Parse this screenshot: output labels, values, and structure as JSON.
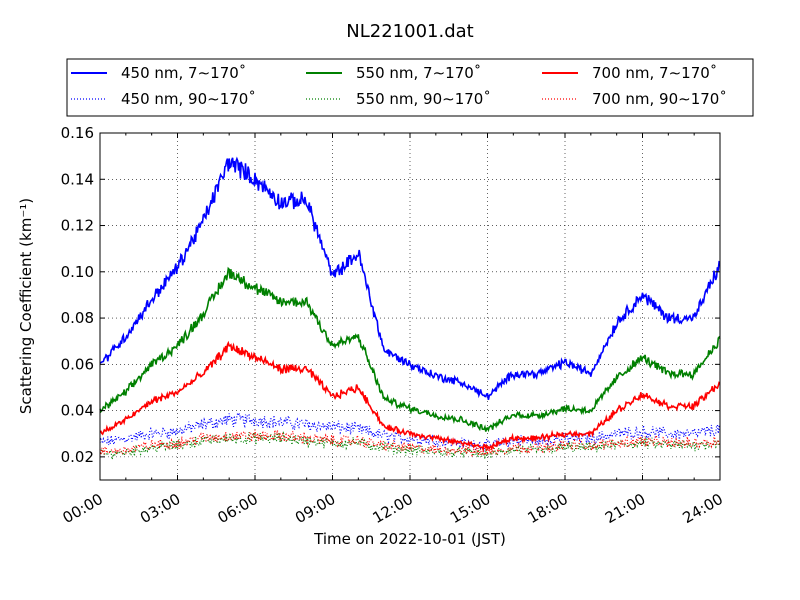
{
  "chart_data": {
    "type": "line",
    "title": "NL221001.dat",
    "xlabel": "Time on 2022-10-01 (JST)",
    "ylabel": "Scattering Coefficient (km⁻¹)",
    "xlim": [
      "00:00",
      "24:00"
    ],
    "ylim": [
      0.01,
      0.16
    ],
    "x_ticks": [
      "00:00",
      "03:00",
      "06:00",
      "09:00",
      "12:00",
      "15:00",
      "18:00",
      "21:00",
      "24:00"
    ],
    "y_ticks": [
      "0.02",
      "0.04",
      "0.06",
      "0.08",
      "0.10",
      "0.12",
      "0.14",
      "0.16"
    ],
    "grid": true,
    "legend_position": "top",
    "x": [
      "00:00",
      "01:00",
      "02:00",
      "03:00",
      "04:00",
      "05:00",
      "06:00",
      "07:00",
      "08:00",
      "09:00",
      "10:00",
      "11:00",
      "12:00",
      "13:00",
      "14:00",
      "15:00",
      "16:00",
      "17:00",
      "18:00",
      "19:00",
      "20:00",
      "21:00",
      "22:00",
      "23:00",
      "24:00"
    ],
    "series": [
      {
        "name": "450 nm, 7∼170˚",
        "color": "#0000ff",
        "style": "solid",
        "values": [
          0.06,
          0.072,
          0.088,
          0.102,
          0.122,
          0.148,
          0.14,
          0.13,
          0.131,
          0.098,
          0.108,
          0.066,
          0.06,
          0.055,
          0.052,
          0.046,
          0.056,
          0.056,
          0.061,
          0.056,
          0.078,
          0.09,
          0.08,
          0.08,
          0.103
        ]
      },
      {
        "name": "550 nm, 7∼170˚",
        "color": "#008000",
        "style": "solid",
        "values": [
          0.04,
          0.048,
          0.06,
          0.068,
          0.082,
          0.1,
          0.093,
          0.087,
          0.087,
          0.068,
          0.072,
          0.045,
          0.041,
          0.038,
          0.036,
          0.032,
          0.038,
          0.038,
          0.041,
          0.04,
          0.054,
          0.063,
          0.056,
          0.056,
          0.071
        ]
      },
      {
        "name": "700 nm, 7∼170˚",
        "color": "#ff0000",
        "style": "solid",
        "values": [
          0.03,
          0.036,
          0.044,
          0.048,
          0.056,
          0.068,
          0.063,
          0.058,
          0.058,
          0.046,
          0.05,
          0.033,
          0.03,
          0.028,
          0.026,
          0.024,
          0.028,
          0.028,
          0.03,
          0.03,
          0.04,
          0.047,
          0.042,
          0.042,
          0.052
        ]
      },
      {
        "name": "450 nm, 90∼170˚",
        "color": "#0000ff",
        "style": "dotted",
        "values": [
          0.026,
          0.028,
          0.03,
          0.031,
          0.034,
          0.036,
          0.036,
          0.035,
          0.034,
          0.033,
          0.032,
          0.029,
          0.028,
          0.027,
          0.026,
          0.025,
          0.027,
          0.027,
          0.028,
          0.028,
          0.03,
          0.031,
          0.03,
          0.03,
          0.032
        ]
      },
      {
        "name": "550 nm, 90∼170˚",
        "color": "#008000",
        "style": "dotted",
        "values": [
          0.021,
          0.022,
          0.024,
          0.025,
          0.027,
          0.028,
          0.028,
          0.028,
          0.027,
          0.026,
          0.026,
          0.024,
          0.023,
          0.022,
          0.022,
          0.021,
          0.023,
          0.023,
          0.024,
          0.024,
          0.025,
          0.026,
          0.025,
          0.025,
          0.026
        ]
      },
      {
        "name": "700 nm, 90∼170˚",
        "color": "#ff0000",
        "style": "dotted",
        "values": [
          0.022,
          0.023,
          0.025,
          0.026,
          0.028,
          0.029,
          0.029,
          0.029,
          0.028,
          0.027,
          0.027,
          0.025,
          0.024,
          0.023,
          0.023,
          0.022,
          0.024,
          0.024,
          0.025,
          0.025,
          0.026,
          0.027,
          0.026,
          0.026,
          0.027
        ]
      }
    ]
  }
}
